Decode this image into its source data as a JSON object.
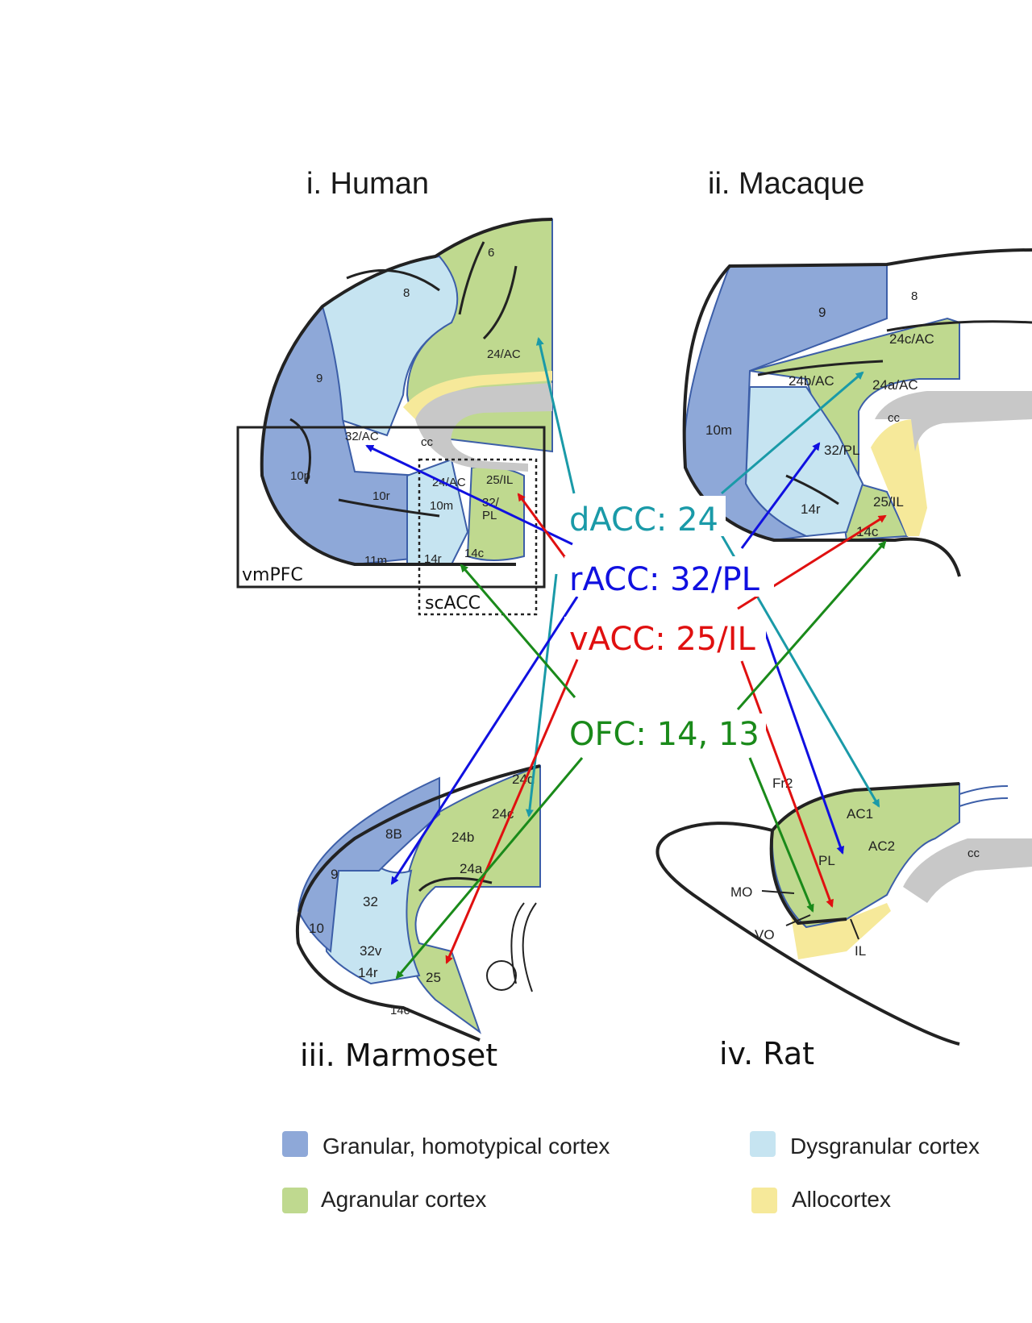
{
  "panels": {
    "human": {
      "title": "i. Human",
      "regions": {
        "r6": "6",
        "r8": "8",
        "r9": "9",
        "r24ac": "24/AC",
        "rcc": "cc",
        "r32ac": "32/AC",
        "r10p": "10p",
        "r10r": "10r",
        "r10m": "10m",
        "r24ac2": "24/AC",
        "r25il": "25/IL",
        "r32pl": "32/\nPL",
        "r14c": "14c",
        "r14r": "14r",
        "r11m": "11m"
      },
      "box_vmpfc": "vmPFC",
      "box_scacc": "scACC"
    },
    "macaque": {
      "title": "ii. Macaque",
      "regions": {
        "r9": "9",
        "r8": "8",
        "r24cac": "24c/AC",
        "r24bac": "24b/AC",
        "r24aac": "24a/AC",
        "rcc": "cc",
        "r10m": "10m",
        "r32pl": "32/PL",
        "r14r": "14r",
        "r25il": "25/IL",
        "r14c": "14c"
      }
    },
    "marmoset": {
      "title": "iii. Marmoset",
      "regions": {
        "r24d": "24d",
        "r24c": "24c",
        "r8b": "8B",
        "r24b": "24b",
        "r24a": "24a",
        "r9": "9",
        "r32": "32",
        "r10": "10",
        "r32v": "32v",
        "r14r": "14r",
        "r25": "25",
        "r14c": "14c"
      }
    },
    "rat": {
      "title": "iv. Rat",
      "regions": {
        "fr2": "Fr2",
        "ac1": "AC1",
        "ac2": "AC2",
        "pl": "PL",
        "cc": "cc",
        "mo": "MO",
        "vo": "VO",
        "il": "IL"
      }
    }
  },
  "center_labels": {
    "dacc": {
      "text": "dACC: 24",
      "color": "#1a9aa8"
    },
    "racc": {
      "text": "rACC: 32/PL",
      "color": "#1010e0"
    },
    "vacc": {
      "text": "vACC: 25/IL",
      "color": "#e01010"
    },
    "ofc": {
      "text": "OFC: 14, 13",
      "color": "#1a8a1a"
    }
  },
  "legend": {
    "granular": {
      "label": "Granular, homotypical cortex",
      "color": "#8ea8d8"
    },
    "dysgranular": {
      "label": "Dysgranular cortex",
      "color": "#c6e4f1"
    },
    "agranular": {
      "label": "Agranular cortex",
      "color": "#bfd98f"
    },
    "allocortex": {
      "label": "Allocortex",
      "color": "#f6e99a"
    }
  }
}
